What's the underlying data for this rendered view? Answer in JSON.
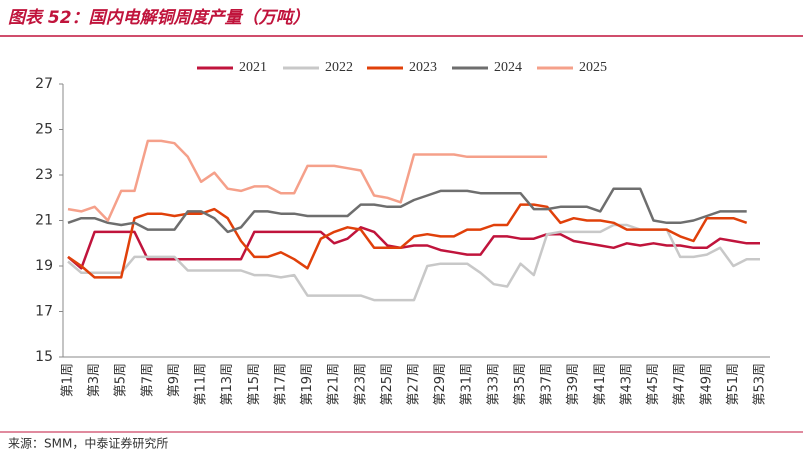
{
  "chart_data": {
    "type": "line",
    "title": "图表 52：国内电解铜周度产量（万吨）",
    "source": "来源：SMM，中泰证券研究所",
    "categories": [
      "第1周",
      null,
      "第3周",
      null,
      "第5周",
      null,
      "第7周",
      null,
      "第9周",
      null,
      "第11周",
      null,
      "第13周",
      null,
      "第15周",
      null,
      "第17周",
      null,
      "第19周",
      null,
      "第21周",
      null,
      "第23周",
      null,
      "第25周",
      null,
      "第27周",
      null,
      "第29周",
      null,
      "第31周",
      null,
      "第33周",
      null,
      "第35周",
      null,
      "第37周",
      null,
      "第39周",
      null,
      "第41周",
      null,
      "第43周",
      null,
      "第45周",
      null,
      "第47周",
      null,
      "第49周",
      null,
      "第51周",
      null,
      "第53周"
    ],
    "ylim": [
      15,
      27
    ],
    "yticks": [
      15,
      17,
      19,
      21,
      23,
      25,
      27
    ],
    "grid": false,
    "legend": "top",
    "series": [
      {
        "name": "2021",
        "color": "#c0143c",
        "values": [
          19.4,
          18.9,
          20.5,
          20.5,
          20.5,
          20.5,
          19.3,
          19.3,
          19.3,
          19.3,
          19.3,
          19.3,
          19.3,
          19.3,
          20.5,
          20.5,
          20.5,
          20.5,
          20.5,
          20.5,
          20.0,
          20.2,
          20.7,
          20.5,
          19.9,
          19.8,
          19.9,
          19.9,
          19.7,
          19.6,
          19.5,
          19.5,
          20.3,
          20.3,
          20.2,
          20.2,
          20.4,
          20.4,
          20.1,
          20.0,
          19.9,
          19.8,
          20.0,
          19.9,
          20.0,
          19.9,
          19.9,
          19.8,
          19.8,
          20.2,
          20.1,
          20.0,
          20.0
        ]
      },
      {
        "name": "2022",
        "color": "#c8c8c8",
        "values": [
          19.2,
          18.7,
          18.7,
          18.7,
          18.7,
          19.4,
          19.4,
          19.4,
          19.4,
          18.8,
          18.8,
          18.8,
          18.8,
          18.8,
          18.6,
          18.6,
          18.5,
          18.6,
          17.7,
          17.7,
          17.7,
          17.7,
          17.7,
          17.5,
          17.5,
          17.5,
          17.5,
          19.0,
          19.1,
          19.1,
          19.1,
          18.7,
          18.2,
          18.1,
          19.1,
          18.6,
          20.4,
          20.5,
          20.5,
          20.5,
          20.5,
          20.8,
          20.8,
          20.6,
          20.6,
          20.6,
          19.4,
          19.4,
          19.5,
          19.8,
          19.0,
          19.3,
          19.3
        ]
      },
      {
        "name": "2023",
        "color": "#e0400a",
        "values": [
          19.4,
          19.0,
          18.5,
          18.5,
          18.5,
          21.1,
          21.3,
          21.3,
          21.2,
          21.3,
          21.3,
          21.5,
          21.1,
          20.1,
          19.4,
          19.4,
          19.6,
          19.3,
          18.9,
          20.2,
          20.5,
          20.7,
          20.6,
          19.8,
          19.8,
          19.8,
          20.3,
          20.4,
          20.3,
          20.3,
          20.6,
          20.6,
          20.8,
          20.8,
          21.7,
          21.7,
          21.6,
          20.9,
          21.1,
          21.0,
          21.0,
          20.9,
          20.6,
          20.6,
          20.6,
          20.6,
          20.3,
          20.1,
          21.1,
          21.1,
          21.1,
          20.9,
          null
        ]
      },
      {
        "name": "2024",
        "color": "#6e6e6e",
        "values": [
          20.9,
          21.1,
          21.1,
          20.9,
          20.8,
          20.9,
          20.6,
          20.6,
          20.6,
          21.4,
          21.4,
          21.1,
          20.5,
          20.7,
          21.4,
          21.4,
          21.3,
          21.3,
          21.2,
          21.2,
          21.2,
          21.2,
          21.7,
          21.7,
          21.6,
          21.6,
          21.9,
          22.1,
          22.3,
          22.3,
          22.3,
          22.2,
          22.2,
          22.2,
          22.2,
          21.5,
          21.5,
          21.6,
          21.6,
          21.6,
          21.4,
          22.4,
          22.4,
          22.4,
          21.0,
          20.9,
          20.9,
          21.0,
          21.2,
          21.4,
          21.4,
          21.4,
          null
        ]
      },
      {
        "name": "2025",
        "color": "#f5a08a",
        "values": [
          21.5,
          21.4,
          21.6,
          21.0,
          22.3,
          22.3,
          24.5,
          24.5,
          24.4,
          23.8,
          22.7,
          23.1,
          22.4,
          22.3,
          22.5,
          22.5,
          22.2,
          22.2,
          23.4,
          23.4,
          23.4,
          23.3,
          23.2,
          22.1,
          22.0,
          21.8,
          23.9,
          23.9,
          23.9,
          23.9,
          23.8,
          23.8,
          23.8,
          23.8,
          23.8,
          23.8,
          23.8,
          null,
          null,
          null,
          null,
          null,
          null,
          null,
          null,
          null,
          null,
          null,
          null,
          null,
          null,
          null,
          null
        ]
      }
    ]
  }
}
